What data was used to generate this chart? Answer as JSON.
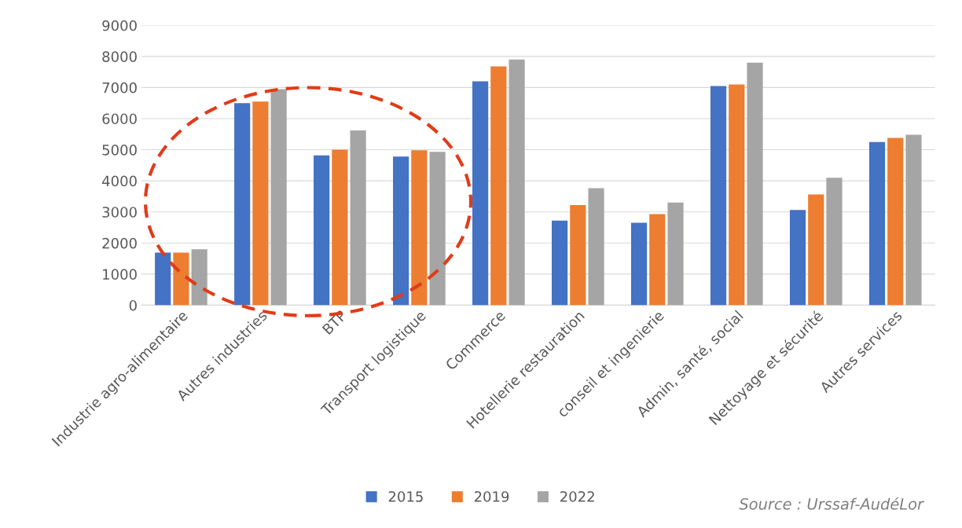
{
  "chart_data": {
    "type": "bar",
    "categories": [
      "Industrie agro-alimentaire",
      "Autres industries",
      "BTP",
      "Transport logistique",
      "Commerce",
      "Hotellerie restauration",
      "conseil et ingenierie",
      "Admin, santé, social",
      "Nettoyage et sécurité",
      "Autres services"
    ],
    "series": [
      {
        "name": "2015",
        "color": "#4472c4",
        "values": [
          1690,
          6500,
          4820,
          4780,
          7200,
          2720,
          2650,
          7050,
          3060,
          5250
        ]
      },
      {
        "name": "2019",
        "color": "#ed7d31",
        "values": [
          1690,
          6550,
          5000,
          4980,
          7680,
          3220,
          2930,
          7100,
          3560,
          5380
        ]
      },
      {
        "name": "2022",
        "color": "#a5a5a5",
        "values": [
          1800,
          6950,
          5620,
          4930,
          7900,
          3760,
          3300,
          7800,
          4100,
          5480
        ]
      }
    ],
    "ylim": [
      0,
      9000
    ],
    "yticks": [
      0,
      1000,
      2000,
      3000,
      4000,
      5000,
      6000,
      7000,
      8000,
      9000
    ],
    "grid": "y",
    "legend": "bottom",
    "annotations": [
      "Source : Urssaf-AudéLor"
    ]
  }
}
